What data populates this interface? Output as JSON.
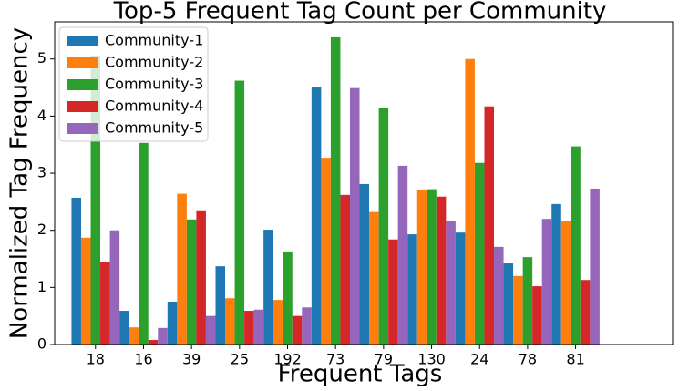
{
  "chart_data": {
    "type": "bar",
    "title": "Top-5 Frequent Tag Count per Community",
    "x_label": "Frequent Tags",
    "y_label": "Normalized Tag Frequency",
    "categories": [
      "18",
      "16",
      "39",
      "25",
      "192",
      "73",
      "79",
      "130",
      "24",
      "78",
      "81"
    ],
    "series": [
      {
        "name": "Community-1",
        "color": "#1f77b4",
        "values": [
          2.57,
          0.59,
          0.75,
          1.37,
          2.01,
          4.5,
          2.81,
          1.93,
          1.96,
          1.42,
          2.46
        ]
      },
      {
        "name": "Community-2",
        "color": "#ff7f0e",
        "values": [
          1.87,
          0.3,
          2.64,
          0.81,
          0.78,
          3.27,
          2.32,
          2.7,
          5.0,
          1.2,
          2.17
        ]
      },
      {
        "name": "Community-3",
        "color": "#2ca02c",
        "values": [
          5.06,
          3.53,
          2.19,
          4.62,
          1.63,
          5.38,
          4.15,
          2.72,
          3.18,
          1.53,
          3.47
        ]
      },
      {
        "name": "Community-4",
        "color": "#d62728",
        "values": [
          1.45,
          0.08,
          2.35,
          0.59,
          0.5,
          2.62,
          1.84,
          2.59,
          4.17,
          1.02,
          1.13
        ]
      },
      {
        "name": "Community-5",
        "color": "#9467bd",
        "values": [
          2.0,
          0.29,
          0.5,
          0.61,
          0.65,
          4.49,
          3.13,
          2.16,
          1.71,
          2.2,
          2.73
        ]
      }
    ],
    "ylim": [
      0,
      5.65
    ],
    "yticks": [
      0,
      1,
      2,
      3,
      4,
      5
    ],
    "grid": false,
    "legend": "upper left"
  }
}
